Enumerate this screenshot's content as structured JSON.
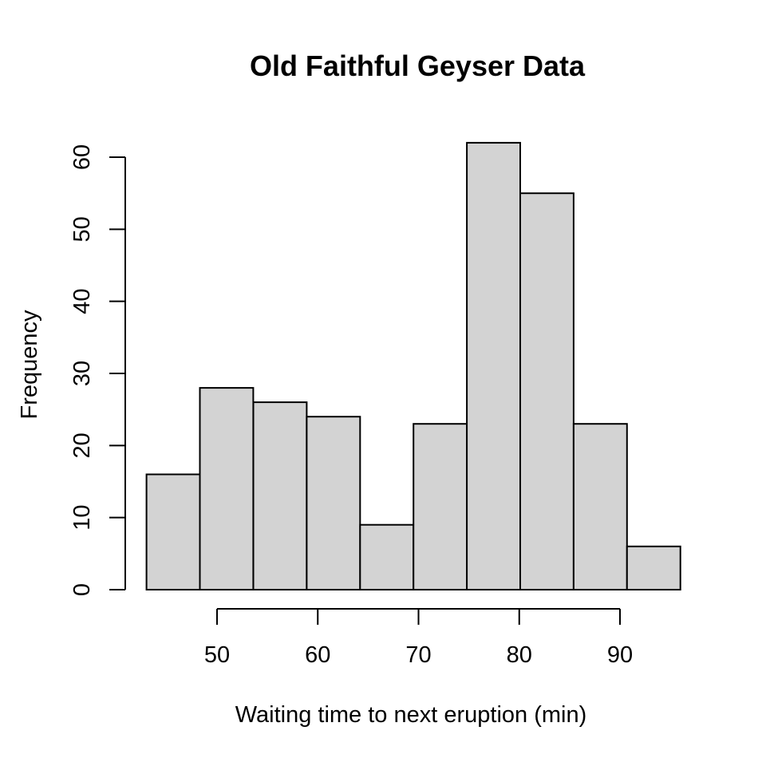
{
  "chart_data": {
    "type": "histogram",
    "title": "Old Faithful Geyser Data",
    "xlabel": "Waiting time to next eruption (min)",
    "ylabel": "Frequency",
    "bin_edges": [
      43,
      48.3,
      53.6,
      58.9,
      64.2,
      69.5,
      74.8,
      80.1,
      85.4,
      90.7,
      96
    ],
    "counts": [
      16,
      28,
      26,
      24,
      9,
      23,
      62,
      55,
      23,
      6
    ],
    "x_ticks": [
      50,
      60,
      70,
      80,
      90
    ],
    "y_ticks": [
      0,
      10,
      20,
      30,
      40,
      50,
      60
    ],
    "xlim": [
      43,
      96
    ],
    "ylim": [
      0,
      60
    ],
    "grid": "off",
    "legend": "none",
    "colors": {
      "bar_fill": "#d3d3d3",
      "bar_stroke": "#000000",
      "axis": "#000000",
      "text": "#000000",
      "background": "#ffffff"
    }
  }
}
